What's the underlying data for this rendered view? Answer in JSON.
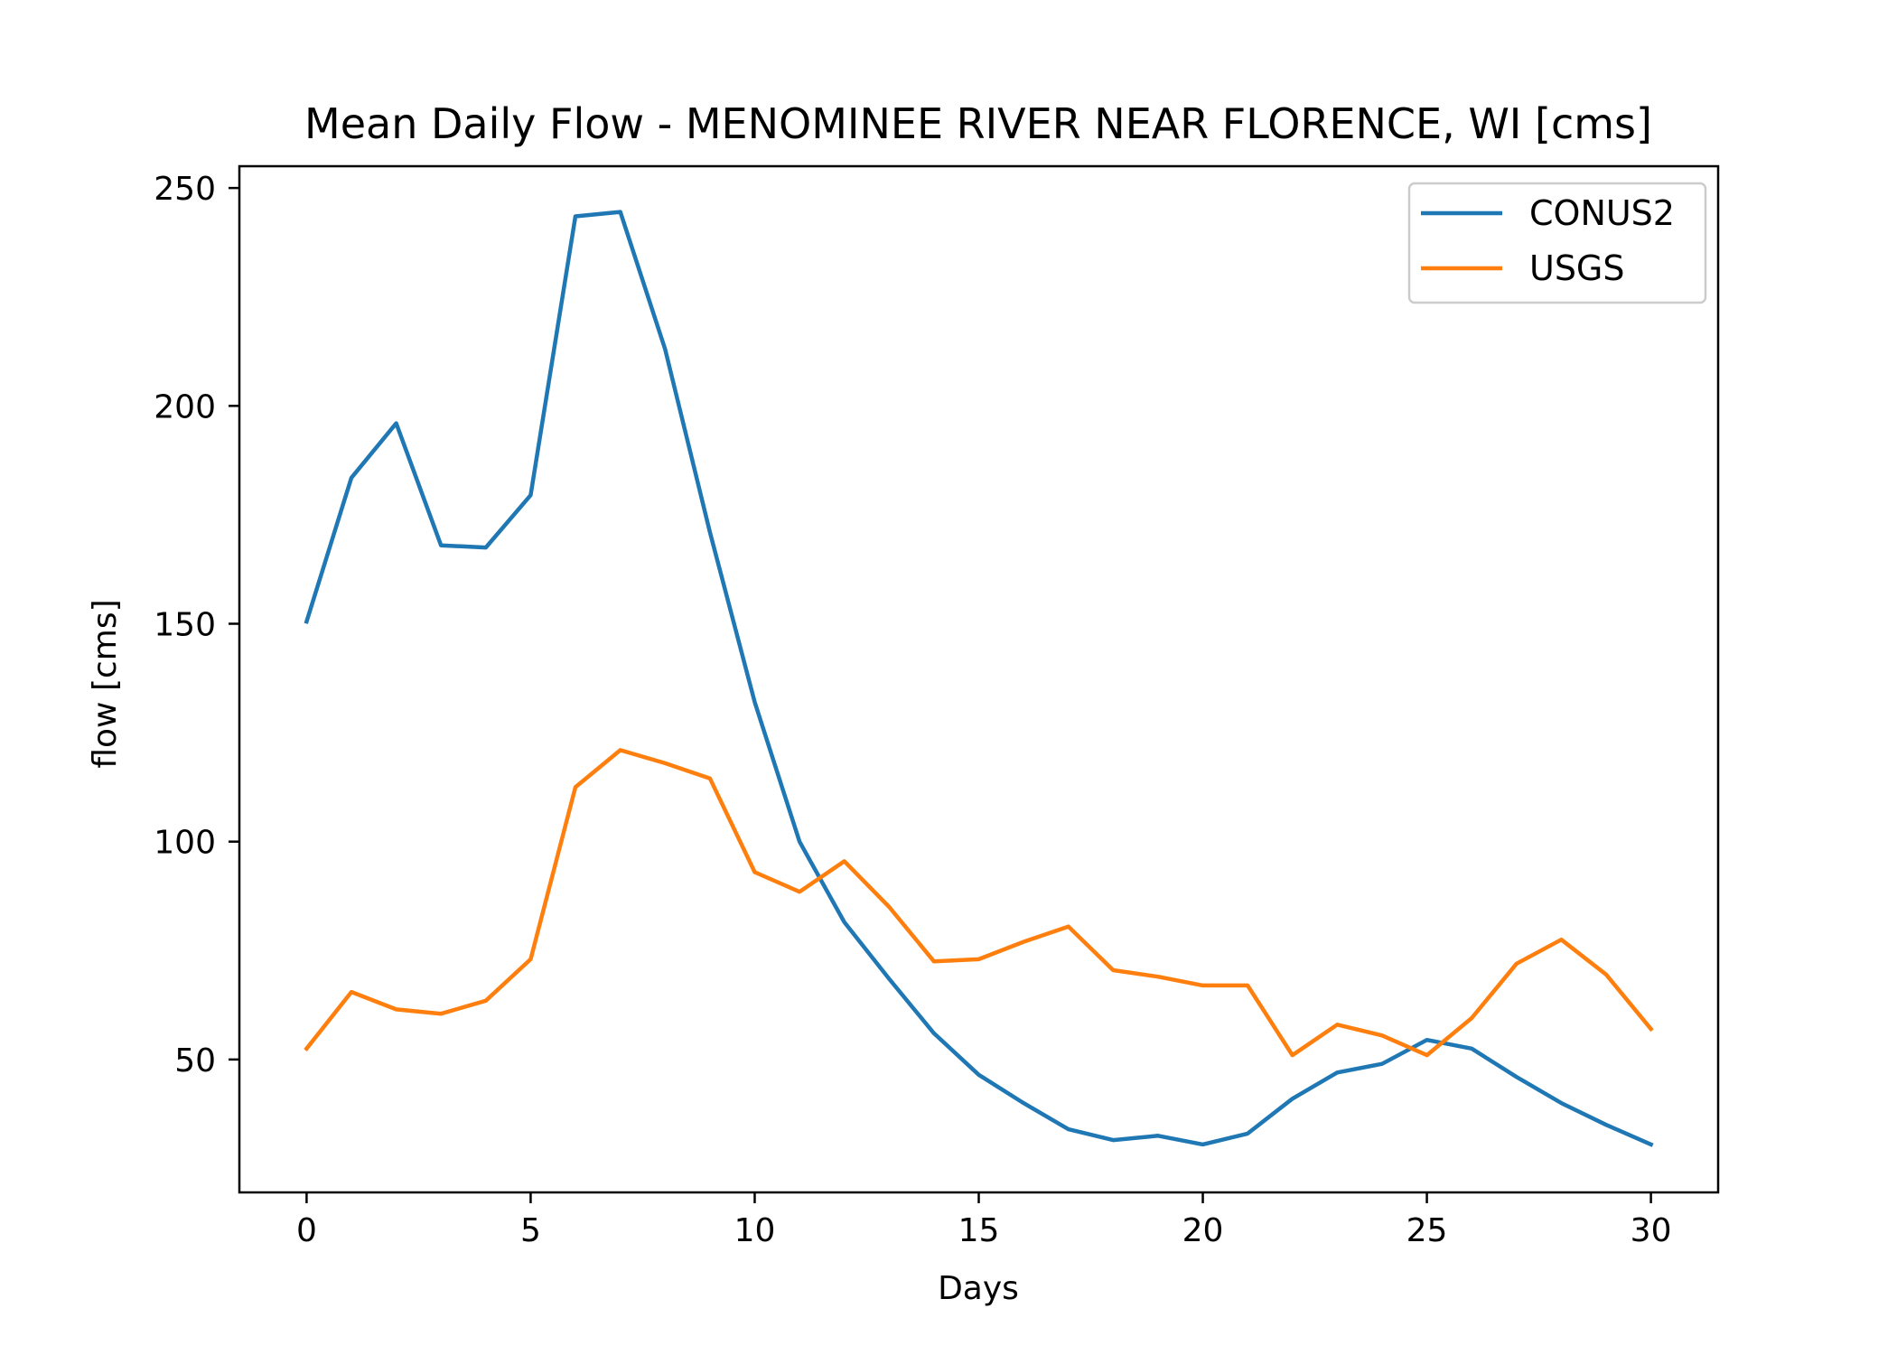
{
  "chart_data": {
    "type": "line",
    "title": "Mean Daily Flow - MENOMINEE RIVER NEAR FLORENCE, WI [cms]",
    "xlabel": "Days",
    "ylabel": "flow [cms]",
    "xlim": [
      -1.5,
      31.5
    ],
    "ylim": [
      19.5,
      255
    ],
    "xticks": [
      0,
      5,
      10,
      15,
      20,
      25,
      30
    ],
    "yticks": [
      50,
      100,
      150,
      200,
      250
    ],
    "grid": false,
    "legend_position": "top-right",
    "x": [
      0,
      1,
      2,
      3,
      4,
      5,
      6,
      7,
      8,
      9,
      10,
      11,
      12,
      13,
      14,
      15,
      16,
      17,
      18,
      19,
      20,
      21,
      22,
      23,
      24,
      25,
      26,
      27,
      28,
      29,
      30
    ],
    "series": [
      {
        "name": "CONUS2",
        "color": "#1f77b4",
        "values": [
          150.5,
          183.5,
          196,
          168,
          167.5,
          179.5,
          243.5,
          244.5,
          213,
          171,
          132,
          100,
          81.5,
          68.5,
          56,
          46.5,
          40,
          34,
          31.5,
          32.5,
          30.5,
          33,
          41,
          47,
          49,
          54.5,
          52.5,
          46,
          40,
          35,
          30.5
        ]
      },
      {
        "name": "USGS",
        "color": "#ff7f0e",
        "values": [
          52.5,
          65.5,
          61.5,
          60.5,
          63.5,
          73,
          112.5,
          121,
          118,
          114.5,
          93,
          88.5,
          95.5,
          85,
          72.5,
          73,
          77,
          80.5,
          70.5,
          69,
          67,
          67,
          51,
          58,
          55.5,
          51,
          59.5,
          72,
          77.5,
          69.5,
          57
        ]
      }
    ]
  }
}
